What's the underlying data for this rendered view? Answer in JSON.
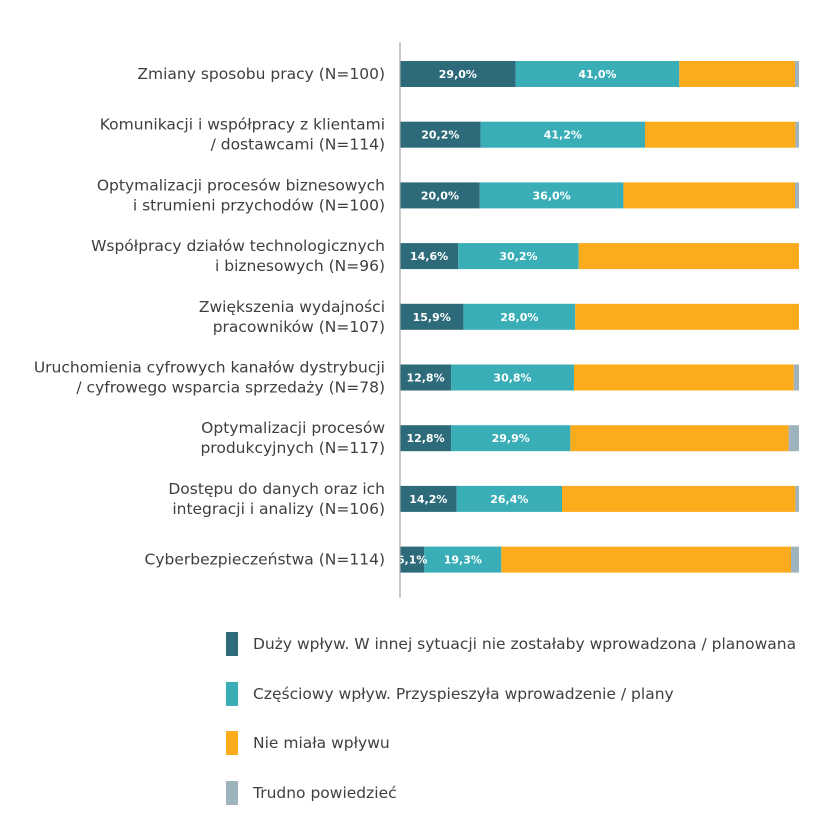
{
  "chart_data": {
    "type": "bar",
    "orientation": "horizontal",
    "stacked": true,
    "categories": [
      [
        "Zmiany sposobu pracy (N=100)"
      ],
      [
        "Komunikacji i współpracy z klientami",
        "/ dostawcami (N=114)"
      ],
      [
        "Optymalizacji procesów biznesowych",
        "i strumieni przychodów (N=100)"
      ],
      [
        "Współpracy działów technologicznych",
        "i biznesowych (N=96)"
      ],
      [
        "Zwiększenia wydajności",
        "pracowników (N=107)"
      ],
      [
        "Uruchomienia cyfrowych kanałów dystrybucji",
        "/ cyfrowego wsparcia sprzedaży (N=78)"
      ],
      [
        "Optymalizacji procesów",
        "produkcyjnych (N=117)"
      ],
      [
        "Dostępu do danych oraz ich",
        "integracji i analizy (N=106)"
      ],
      [
        "Cyberbezpieczeństwa (N=114)"
      ]
    ],
    "series": [
      {
        "name": "Duży wpływ. W innej sytuacji nie zostałaby wprowadzona / planowana",
        "color": "#2e6b7a",
        "values": [
          29.0,
          20.2,
          20.0,
          14.6,
          15.9,
          12.8,
          12.8,
          14.2,
          6.1
        ],
        "labels": [
          "29,0%",
          "20,2%",
          "20,0%",
          "14,6%",
          "15,9%",
          "12,8%",
          "12,8%",
          "14,2%",
          "6,1%"
        ]
      },
      {
        "name": "Częściowy wpływ. Przyspieszyła wprowadzenie / plany",
        "color": "#3aaeb7",
        "values": [
          41.0,
          41.2,
          36.0,
          30.2,
          28.0,
          30.8,
          29.9,
          26.4,
          19.3
        ],
        "labels": [
          "41,0%",
          "41,2%",
          "36,0%",
          "30,2%",
          "28,0%",
          "30,8%",
          "29,9%",
          "26,4%",
          "19,3%"
        ]
      },
      {
        "name": "Nie miała wpływu",
        "color": "#fbab1b",
        "values": [
          29.0,
          37.7,
          43.0,
          55.2,
          56.1,
          55.1,
          54.7,
          58.5,
          72.6
        ],
        "labels": []
      },
      {
        "name": "Trudno powiedzieć",
        "color": "#9fb3be",
        "values": [
          1.0,
          0.9,
          1.0,
          0.0,
          0.0,
          1.3,
          2.6,
          0.9,
          2.0
        ],
        "labels": []
      }
    ],
    "xlim": [
      0,
      100
    ],
    "axis_line_color": "#a8a8a8",
    "legend_position": "bottom-left",
    "grid": false
  }
}
